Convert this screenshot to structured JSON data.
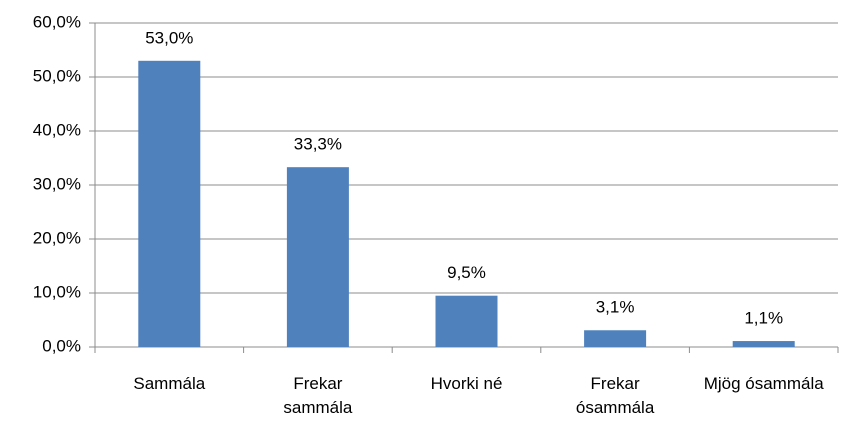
{
  "chart_data": {
    "type": "bar",
    "categories": [
      "Sammála",
      "Frekar sammála",
      "Hvorki né",
      "Frekar ósammála",
      "Mjög ósammála"
    ],
    "values": [
      53,
      33.3,
      9.5,
      3.1,
      1.1
    ],
    "value_labels": [
      "53,0%",
      "33,3%",
      "9,5%",
      "3,1%",
      "1,1%"
    ],
    "color": "#4f81bd",
    "ylim": [
      0,
      60
    ],
    "yticks": [
      {
        "value": 0,
        "label": "0,0%"
      },
      {
        "value": 10,
        "label": "10,0%"
      },
      {
        "value": 20,
        "label": "20,0%"
      },
      {
        "value": 30,
        "label": "30,0%"
      },
      {
        "value": 40,
        "label": "40,0%"
      },
      {
        "value": 50,
        "label": "50,0%"
      },
      {
        "value": 60,
        "label": "60,0%"
      }
    ],
    "grid": true
  }
}
